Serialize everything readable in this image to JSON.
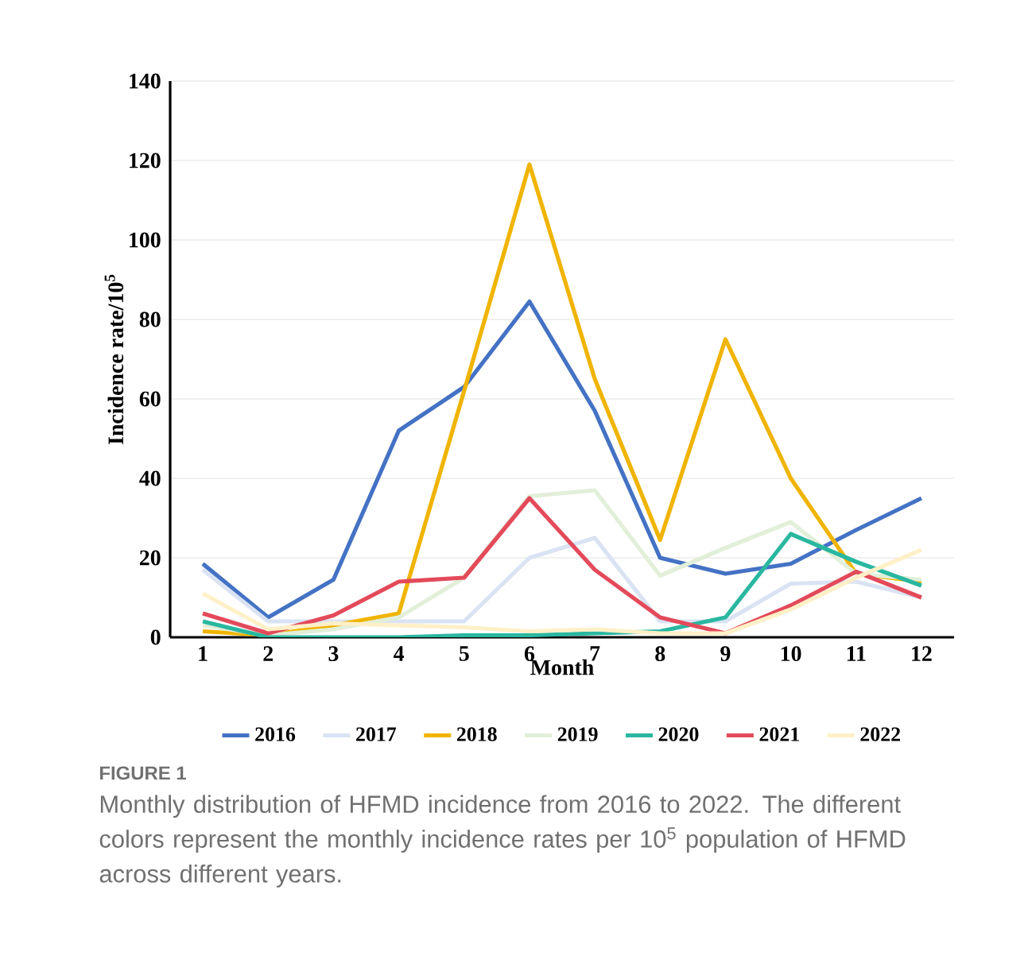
{
  "chart_data": {
    "type": "line",
    "xlabel": "Month",
    "ylabel": "Incidence rate/10$^{5}$",
    "categories": [
      "1",
      "2",
      "3",
      "4",
      "5",
      "6",
      "7",
      "8",
      "9",
      "10",
      "11",
      "12"
    ],
    "ylim": [
      0,
      140
    ],
    "yticks": [
      0,
      20,
      40,
      60,
      80,
      100,
      120,
      140
    ],
    "grid": "y",
    "legend": "bottom",
    "marker": "none",
    "line_style": "solid",
    "series": [
      {
        "name": "2016",
        "color": "#4472c4",
        "values": [
          18.5,
          5,
          14.5,
          52,
          63,
          84.5,
          57,
          20,
          16,
          18.5,
          27,
          35
        ]
      },
      {
        "name": "2017",
        "color": "#dae3f3",
        "values": [
          17,
          4,
          4,
          4,
          4,
          20,
          25,
          4,
          4,
          13.5,
          14,
          10
        ]
      },
      {
        "name": "2018",
        "color": "#f0b400",
        "values": [
          1.5,
          0.5,
          3,
          6,
          62,
          119,
          65,
          24.5,
          75,
          40,
          16,
          14
        ]
      },
      {
        "name": "2019",
        "color": "#e2efd9",
        "values": [
          3,
          0.5,
          2,
          5,
          15,
          35.5,
          37,
          15.5,
          22.5,
          29,
          16,
          14.5
        ]
      },
      {
        "name": "2020",
        "color": "#2ab7a0",
        "values": [
          4,
          0,
          0,
          0,
          0.5,
          0.5,
          1,
          1.5,
          5,
          26,
          19,
          13
        ]
      },
      {
        "name": "2021",
        "color": "#e34a5a",
        "values": [
          6,
          1,
          5.5,
          14,
          15,
          35,
          17,
          5,
          1,
          8,
          16.5,
          10
        ]
      },
      {
        "name": "2022",
        "color": "#fff0c8",
        "values": [
          11,
          2,
          3.5,
          3,
          2.5,
          1.5,
          2,
          1,
          1,
          7,
          15,
          22
        ]
      }
    ],
    "annotations": [
      "FIGURE 1",
      "Monthly distribution of HFMD incidence from 2016 to 2022. The different colors represent the monthly incidence rates per 10$^{5}$ population of HFMD across different years."
    ]
  }
}
